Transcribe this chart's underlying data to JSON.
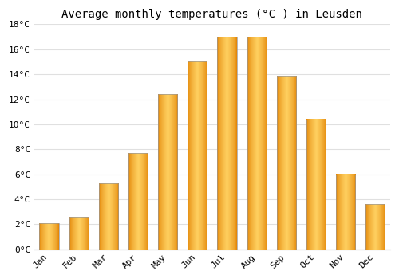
{
  "title": "Average monthly temperatures (°C ) in Leusden",
  "months": [
    "Jan",
    "Feb",
    "Mar",
    "Apr",
    "May",
    "Jun",
    "Jul",
    "Aug",
    "Sep",
    "Oct",
    "Nov",
    "Dec"
  ],
  "values": [
    2.1,
    2.6,
    5.3,
    7.7,
    12.4,
    15.0,
    17.0,
    17.0,
    13.9,
    10.4,
    6.0,
    3.6
  ],
  "bar_color_center": "#FFD060",
  "bar_color_edge": "#E08000",
  "bar_outline_color": "#999999",
  "ylim": [
    0,
    18
  ],
  "yticks": [
    0,
    2,
    4,
    6,
    8,
    10,
    12,
    14,
    16,
    18
  ],
  "ytick_labels": [
    "0°C",
    "2°C",
    "4°C",
    "6°C",
    "8°C",
    "10°C",
    "12°C",
    "14°C",
    "16°C",
    "18°C"
  ],
  "background_color": "#ffffff",
  "grid_color": "#e0e0e0",
  "title_fontsize": 10,
  "tick_fontsize": 8,
  "bar_width": 0.65
}
